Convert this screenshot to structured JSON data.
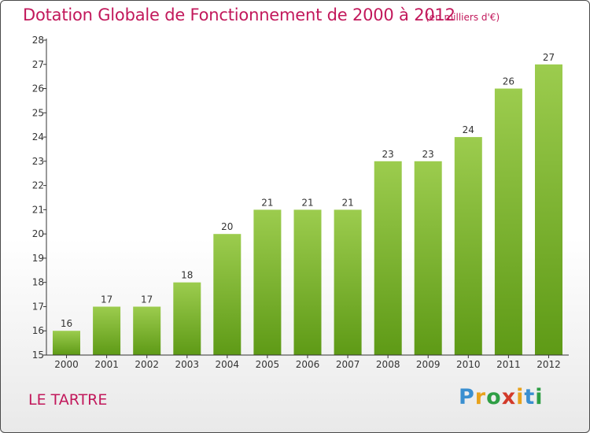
{
  "header": {
    "title": "Dotation Globale de Fonctionnement de 2000 à 2012",
    "subtitle": "(en milliers d'€)"
  },
  "footer": {
    "city": "LE TARTRE",
    "brand": "Proxiti"
  },
  "colors": {
    "title": "#c2185b",
    "bar_top": "#9ccc4e",
    "bar_bottom": "#5e9a16",
    "axis": "#333333"
  },
  "chart_data": {
    "type": "bar",
    "categories": [
      "2000",
      "2001",
      "2002",
      "2003",
      "2004",
      "2005",
      "2006",
      "2007",
      "2008",
      "2009",
      "2010",
      "2011",
      "2012"
    ],
    "values": [
      16,
      17,
      17,
      18,
      20,
      21,
      21,
      21,
      23,
      23,
      24,
      26,
      27
    ],
    "title": "Dotation Globale de Fonctionnement de 2000 à 2012",
    "ylim": [
      15,
      28
    ],
    "yticks": [
      15,
      16,
      17,
      18,
      19,
      20,
      21,
      22,
      23,
      24,
      25,
      26,
      27,
      28
    ],
    "grid": false,
    "data_labels": true
  }
}
